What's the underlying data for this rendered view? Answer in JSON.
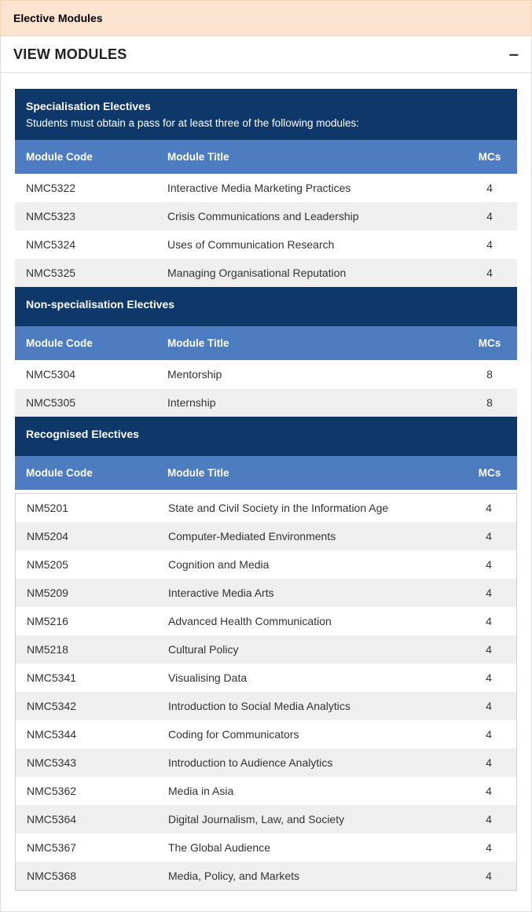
{
  "banner": {
    "title": "Elective Modules"
  },
  "accordion": {
    "title": "VIEW MODULES",
    "collapse_icon": "–"
  },
  "columns": {
    "code": "Module Code",
    "title": "Module Title",
    "mcs": "MCs"
  },
  "sections": {
    "specialisation": {
      "title": "Specialisation Electives",
      "subtitle": "Students must obtain a pass for at least three of the following modules:",
      "rows": [
        {
          "code": "NMC5322",
          "title": "Interactive Media Marketing Practices",
          "mcs": "4"
        },
        {
          "code": "NMC5323",
          "title": "Crisis Communications and Leadership",
          "mcs": "4"
        },
        {
          "code": "NMC5324",
          "title": "Uses of Communication Research",
          "mcs": "4"
        },
        {
          "code": "NMC5325",
          "title": "Managing Organisational Reputation",
          "mcs": "4"
        }
      ]
    },
    "nonspecialisation": {
      "title": "Non-specialisation Electives",
      "rows": [
        {
          "code": "NMC5304",
          "title": "Mentorship",
          "mcs": "8"
        },
        {
          "code": "NMC5305",
          "title": "Internship",
          "mcs": "8"
        }
      ]
    },
    "recognised": {
      "title": "Recognised Electives",
      "rows": [
        {
          "code": "NM5201",
          "title": "State and Civil Society in the Information Age",
          "mcs": "4"
        },
        {
          "code": "NM5204",
          "title": "Computer-Mediated Environments",
          "mcs": "4"
        },
        {
          "code": "NM5205",
          "title": "Cognition and Media",
          "mcs": "4"
        },
        {
          "code": "NM5209",
          "title": "Interactive Media Arts",
          "mcs": "4"
        },
        {
          "code": "NM5216",
          "title": "Advanced Health Communication",
          "mcs": "4"
        },
        {
          "code": "NM5218",
          "title": "Cultural Policy",
          "mcs": "4"
        },
        {
          "code": "NMC5341",
          "title": "Visualising Data",
          "mcs": "4"
        },
        {
          "code": "NMC5342",
          "title": "Introduction to Social Media Analytics",
          "mcs": "4"
        },
        {
          "code": "NMC5344",
          "title": "Coding for Communicators",
          "mcs": "4"
        },
        {
          "code": "NMC5343",
          "title": "Introduction to Audience Analytics",
          "mcs": "4"
        },
        {
          "code": "NMC5362",
          "title": "Media in Asia",
          "mcs": "4"
        },
        {
          "code": "NMC5364",
          "title": "Digital Journalism, Law, and Society",
          "mcs": "4"
        },
        {
          "code": "NMC5367",
          "title": "The Global Audience",
          "mcs": "4"
        },
        {
          "code": "NMC5368",
          "title": "Media, Policy, and Markets",
          "mcs": "4"
        }
      ]
    }
  }
}
